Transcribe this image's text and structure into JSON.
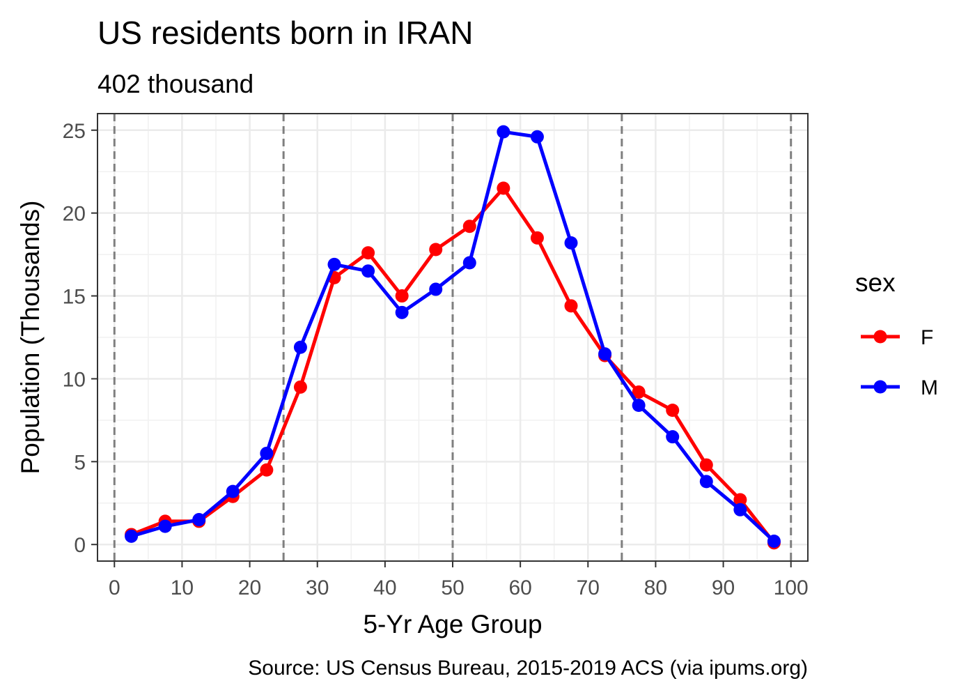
{
  "chart_data": {
    "type": "line",
    "title": "US residents born in IRAN",
    "subtitle": "402 thousand",
    "xlabel": "5-Yr Age Group",
    "ylabel": "Population (Thousands)",
    "caption": "Source: US Census Bureau, 2015-2019 ACS (via ipums.org)",
    "xlim": [
      -2.5,
      102.5
    ],
    "ylim": [
      -1.0,
      26.0
    ],
    "x_ticks": [
      0,
      10,
      20,
      30,
      40,
      50,
      60,
      70,
      80,
      90,
      100
    ],
    "y_ticks": [
      0,
      5,
      10,
      15,
      20,
      25
    ],
    "vlines": [
      0,
      25,
      50,
      75,
      100
    ],
    "grid": true,
    "legend": {
      "title": "sex",
      "position": "right"
    },
    "x": [
      2.5,
      7.5,
      12.5,
      17.5,
      22.5,
      27.5,
      32.5,
      37.5,
      42.5,
      47.5,
      52.5,
      57.5,
      62.5,
      67.5,
      72.5,
      77.5,
      82.5,
      87.5,
      92.5,
      97.5
    ],
    "series": [
      {
        "name": "F",
        "color": "#ff0000",
        "values": [
          0.6,
          1.4,
          1.4,
          2.9,
          4.5,
          9.5,
          16.1,
          17.6,
          15.0,
          17.8,
          19.2,
          21.5,
          18.5,
          14.4,
          11.4,
          9.2,
          8.1,
          4.8,
          2.7,
          0.1
        ]
      },
      {
        "name": "M",
        "color": "#0000ff",
        "values": [
          0.5,
          1.1,
          1.5,
          3.2,
          5.5,
          11.9,
          16.9,
          16.5,
          14.0,
          15.4,
          17.0,
          24.9,
          24.6,
          18.2,
          11.5,
          8.4,
          6.5,
          3.8,
          2.1,
          0.2
        ]
      }
    ]
  }
}
